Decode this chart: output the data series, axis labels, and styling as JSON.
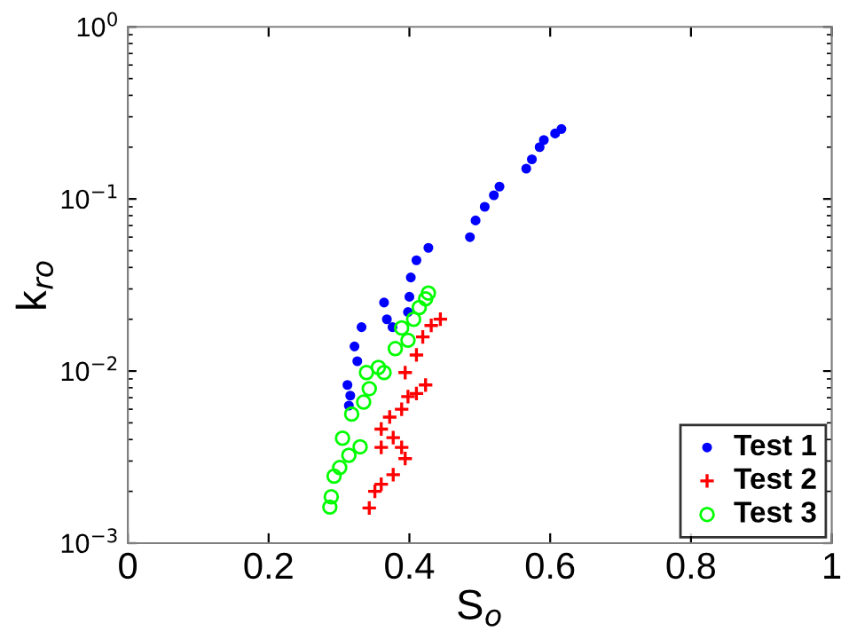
{
  "chart_data": {
    "type": "scatter",
    "xlabel": "S$_{o}$",
    "ylabel": "k$_{ro}$",
    "log": "y",
    "xlim": [
      0,
      1
    ],
    "ylim": [
      0.001,
      1
    ],
    "xticks": [
      0,
      0.2,
      0.4,
      0.6,
      0.8,
      1
    ],
    "yticks": [
      {
        "value": 0.001,
        "label": "10$^{−3}$"
      },
      {
        "value": 0.01,
        "label": "10$^{−2}$"
      },
      {
        "value": 0.1,
        "label": "10$^{−1}$"
      },
      {
        "value": 1,
        "label": "10$^{0}$"
      }
    ],
    "grid": false,
    "legend": "bottom right",
    "series": [
      {
        "name": "Test 1",
        "color": "#0000ff",
        "marker": "circle",
        "x": [
          0.616,
          0.607,
          0.591,
          0.585,
          0.574,
          0.566,
          0.528,
          0.52,
          0.507,
          0.494,
          0.486,
          0.427,
          0.41,
          0.402,
          0.4,
          0.398,
          0.364,
          0.368,
          0.376,
          0.332,
          0.322,
          0.326,
          0.312,
          0.316,
          0.314
        ],
        "values": [
          0.255,
          0.24,
          0.22,
          0.2,
          0.17,
          0.15,
          0.118,
          0.105,
          0.09,
          0.075,
          0.06,
          0.052,
          0.044,
          0.035,
          0.027,
          0.022,
          0.025,
          0.02,
          0.018,
          0.018,
          0.0139,
          0.0114,
          0.0083,
          0.0072,
          0.0063
        ]
      },
      {
        "name": "Test 2",
        "color": "#ff0000",
        "marker": "cross",
        "x": [
          0.343,
          0.351,
          0.36,
          0.377,
          0.394,
          0.389,
          0.377,
          0.36,
          0.36,
          0.372,
          0.389,
          0.398,
          0.41,
          0.423,
          0.394,
          0.41,
          0.419,
          0.431,
          0.444
        ],
        "values": [
          0.0016,
          0.002,
          0.0022,
          0.0025,
          0.0031,
          0.0036,
          0.0041,
          0.0036,
          0.0046,
          0.0054,
          0.006,
          0.0071,
          0.0074,
          0.0083,
          0.0098,
          0.0124,
          0.0158,
          0.0184,
          0.02
        ]
      },
      {
        "name": "Test 3",
        "color": "#00ff00",
        "marker": "open circle",
        "x": [
          0.287,
          0.289,
          0.293,
          0.301,
          0.314,
          0.33,
          0.305,
          0.318,
          0.335,
          0.343,
          0.339,
          0.356,
          0.364,
          0.38,
          0.398,
          0.389,
          0.406,
          0.414,
          0.423,
          0.427
        ],
        "values": [
          0.00162,
          0.00186,
          0.00245,
          0.00275,
          0.00324,
          0.00363,
          0.00407,
          0.00562,
          0.0066,
          0.0079,
          0.0098,
          0.0105,
          0.0098,
          0.0135,
          0.0151,
          0.0178,
          0.02,
          0.0234,
          0.0263,
          0.0284
        ]
      }
    ]
  }
}
